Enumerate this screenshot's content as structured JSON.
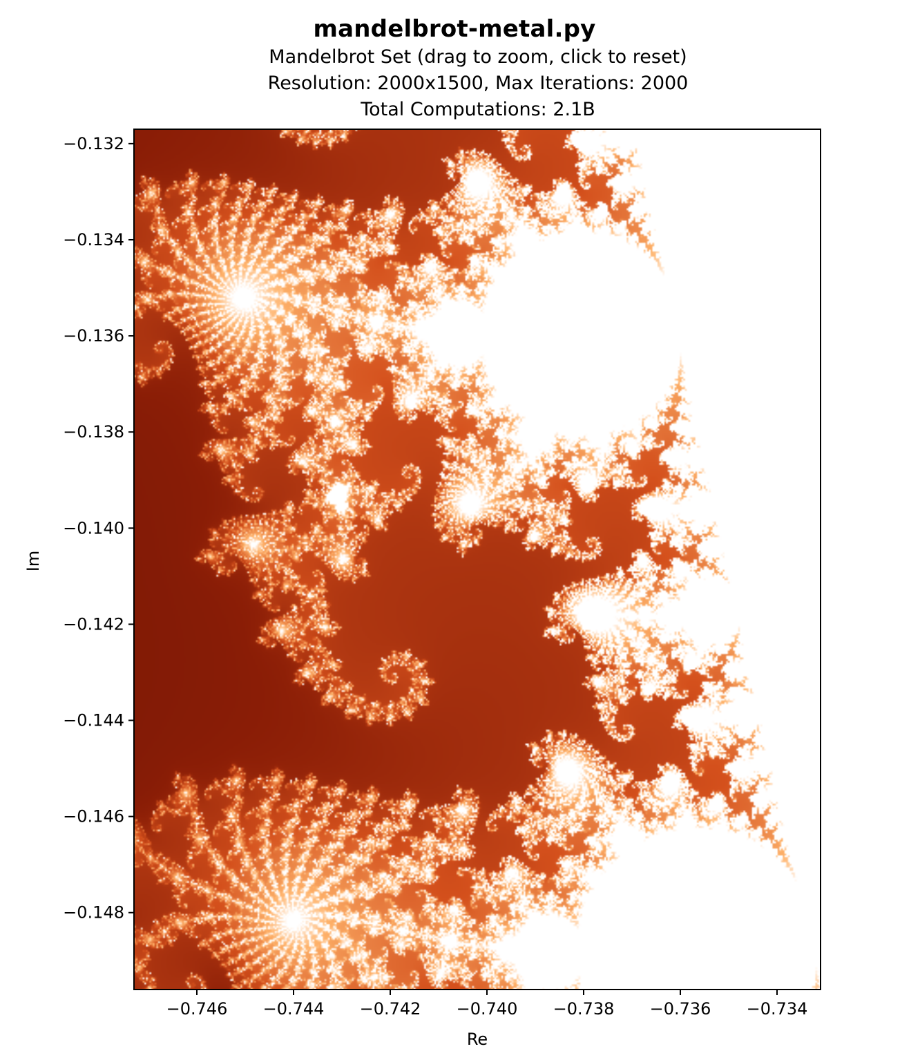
{
  "window": {
    "title": "mandelbrot-metal.py"
  },
  "plot": {
    "subtitle_lines": [
      "Mandelbrot Set (drag to zoom, click to reset)",
      "Resolution: 2000x1500, Max Iterations: 2000",
      "Total Computations: 2.1B"
    ],
    "xlabel": "Re",
    "ylabel": "Im",
    "x_ticks": [
      "−0.746",
      "−0.744",
      "−0.742",
      "−0.740",
      "−0.738",
      "−0.736",
      "−0.734"
    ],
    "y_ticks": [
      "−0.132",
      "−0.134",
      "−0.136",
      "−0.138",
      "−0.140",
      "−0.142",
      "−0.144",
      "−0.146",
      "−0.148"
    ],
    "colormap": [
      "#050000",
      "#3a0600",
      "#8a1d06",
      "#d4501c",
      "#ffb36b",
      "#ffffff"
    ]
  },
  "chart_data": {
    "type": "heatmap",
    "xlabel": "Re",
    "ylabel": "Im",
    "xlim": [
      -0.7473,
      -0.7331
    ],
    "ylim": [
      -0.1496,
      -0.1317
    ],
    "x_tick_values": [
      -0.746,
      -0.744,
      -0.742,
      -0.74,
      -0.738,
      -0.736,
      -0.734
    ],
    "y_tick_values": [
      -0.132,
      -0.134,
      -0.136,
      -0.138,
      -0.14,
      -0.142,
      -0.144,
      -0.146,
      -0.148
    ],
    "resolution": "2000x1500",
    "max_iterations": 2000,
    "total_computations": "2.1B"
  }
}
